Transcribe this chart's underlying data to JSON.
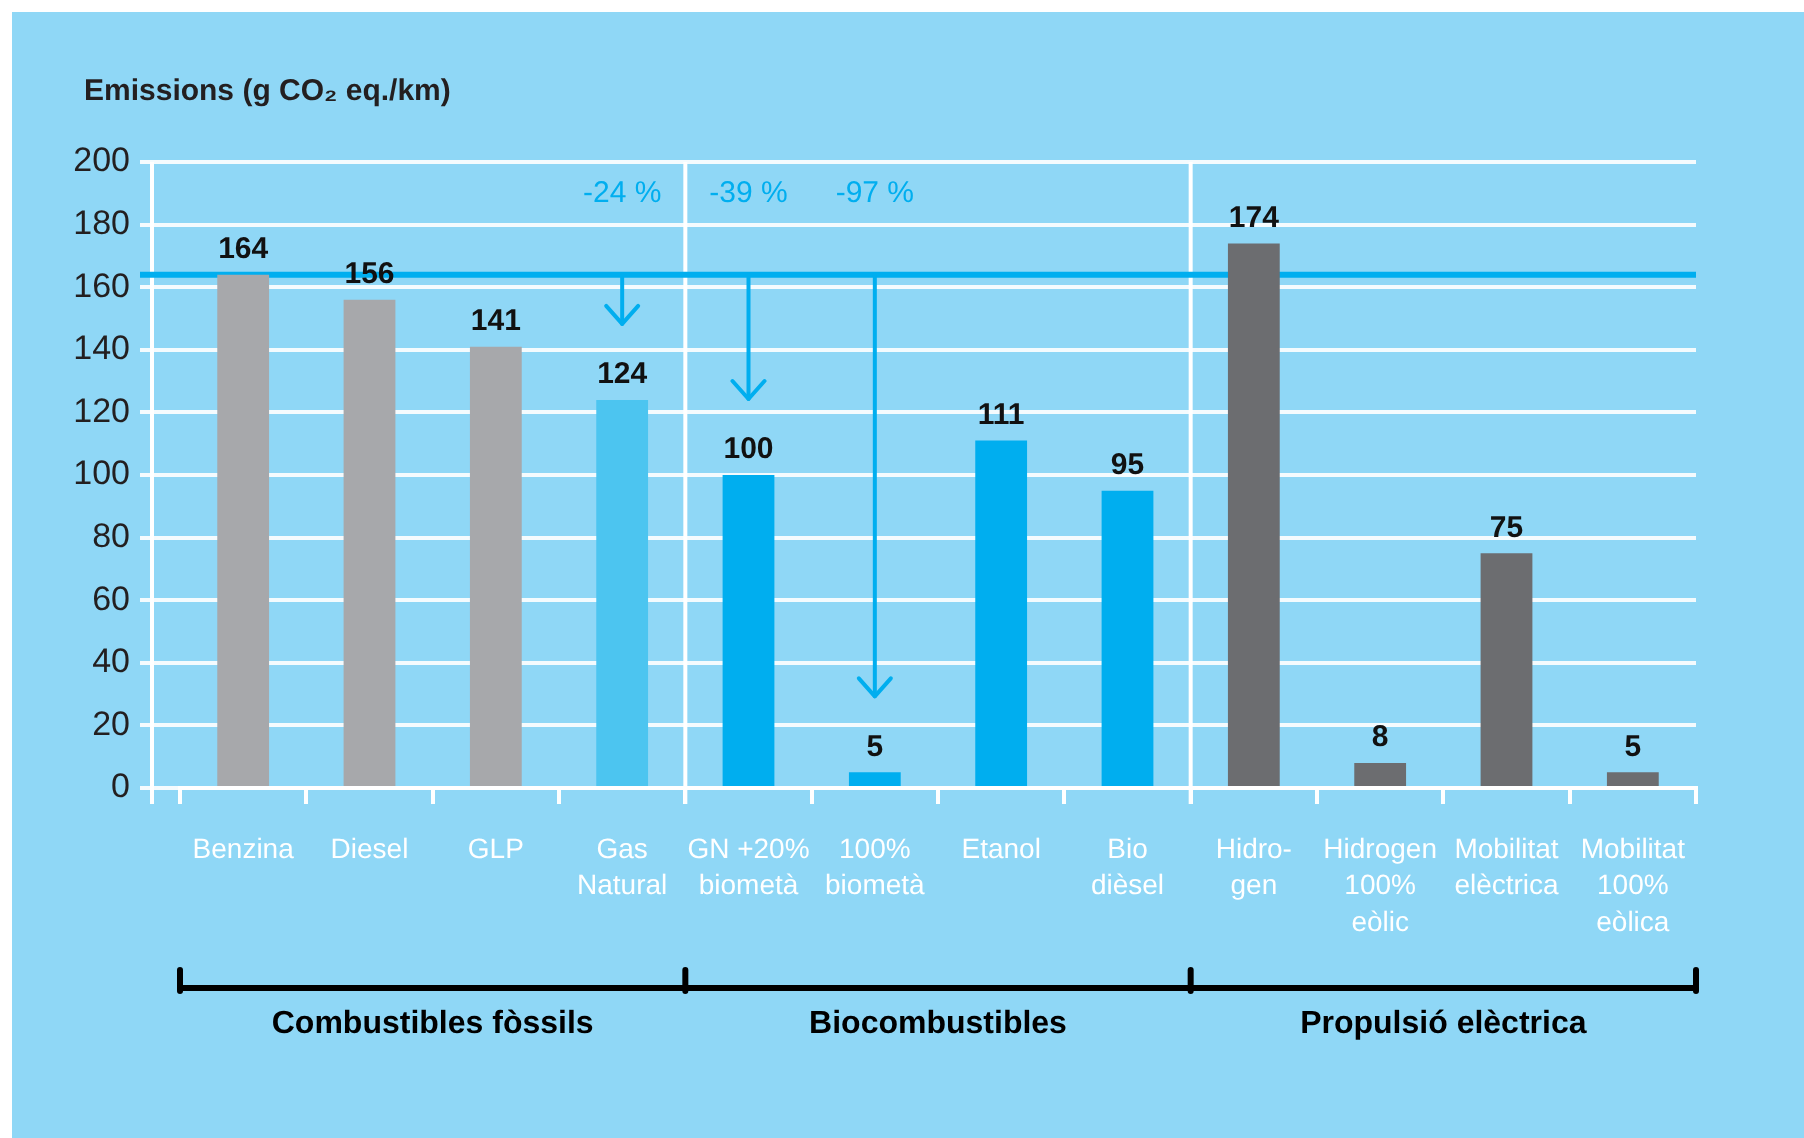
{
  "chart_data": {
    "type": "bar",
    "ylabel": "Emissions (g CO₂ eq./km)",
    "categories": [
      "Benzina",
      "Diesel",
      "GLP",
      "Gas\nNatural",
      "GN +20%\nbiometà",
      "100%\nbiometà",
      "Etanol",
      "Bio\ndièsel",
      "Hidro-\ngen",
      "Hidrogen\n100%\neòlic",
      "Mobilitat\nelèctrica",
      "Mobilitat\n100%\neòlica"
    ],
    "values": [
      164,
      156,
      141,
      124,
      100,
      5,
      111,
      95,
      174,
      8,
      75,
      5
    ],
    "colors": [
      "#a7a8ab",
      "#a7a8ab",
      "#a7a8ab",
      "#4cc5f0",
      "#00aeef",
      "#00aeef",
      "#00aeef",
      "#00aeef",
      "#6c6d70",
      "#6c6d70",
      "#6c6d70",
      "#6c6d70"
    ],
    "ylim": [
      0,
      200
    ],
    "yticks": [
      0,
      20,
      40,
      60,
      80,
      100,
      120,
      140,
      160,
      180,
      200
    ],
    "grid": "y",
    "legend": false,
    "data_labels": true,
    "ref_lines": [
      {
        "axis": "y",
        "value": 164,
        "color": "#00aeef"
      }
    ],
    "annotations": [
      "-24 %",
      "-39 %",
      "-97 %",
      "Combustibles fòssils",
      "Biocombustibles",
      "Propulsió elèctrica"
    ]
  }
}
